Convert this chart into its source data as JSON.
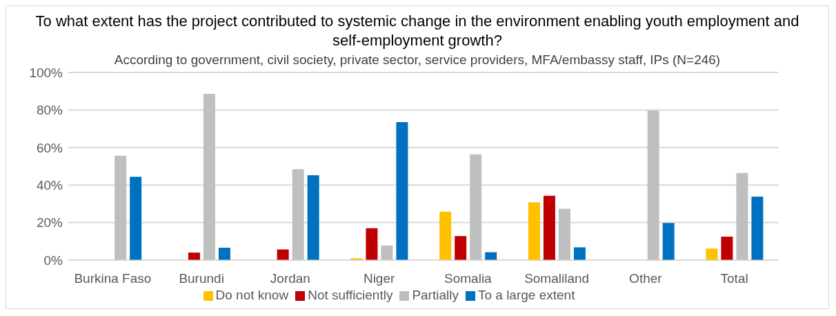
{
  "chart_data": {
    "type": "bar",
    "title": "To what extent has the project contributed to systemic change in the environment enabling youth employment and self-employment growth?",
    "subtitle": "According to government, civil society, private sector, service providers, MFA/embassy staff, IPs (N=246)",
    "categories": [
      "Burkina Faso",
      "Burundi",
      "Jordan",
      "Niger",
      "Somalia",
      "Somaliland",
      "Other",
      "Total"
    ],
    "series": [
      {
        "name": "Do not know",
        "color": "#ffc000",
        "values": [
          0,
          0,
          0,
          1,
          25.8,
          30.8,
          0,
          6.2
        ]
      },
      {
        "name": "Not sufficiently",
        "color": "#c00000",
        "values": [
          0,
          4,
          5.7,
          17,
          12.8,
          34.3,
          0,
          12.5
        ]
      },
      {
        "name": "Partially",
        "color": "#bfbfbf",
        "values": [
          55.6,
          88.6,
          48.4,
          7.8,
          56.3,
          27.4,
          79.7,
          46.4
        ]
      },
      {
        "name": "To a large extent",
        "color": "#0070c0",
        "values": [
          44.4,
          6.6,
          45.2,
          73.5,
          4.2,
          6.8,
          19.8,
          33.8
        ]
      }
    ],
    "ylim": [
      0,
      100
    ],
    "yticks": [
      {
        "value": 0,
        "label": "0%"
      },
      {
        "value": 20,
        "label": "20%"
      },
      {
        "value": 40,
        "label": "40%"
      },
      {
        "value": 60,
        "label": "60%"
      },
      {
        "value": 80,
        "label": "80%"
      },
      {
        "value": 100,
        "label": "100%"
      }
    ],
    "grid": "y",
    "legend": "bottom"
  }
}
